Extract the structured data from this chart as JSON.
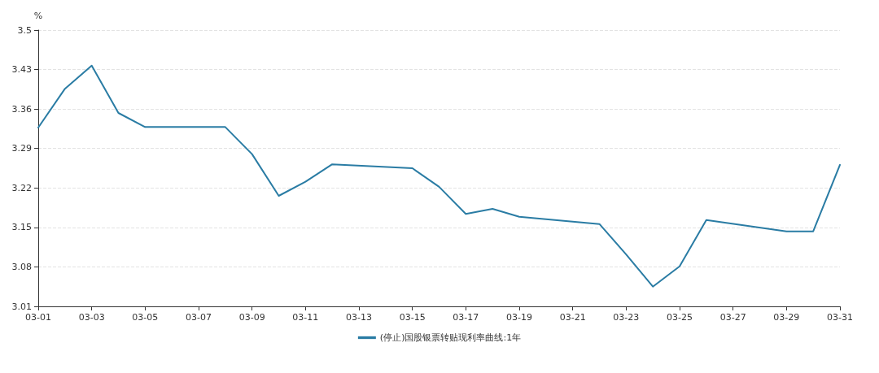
{
  "chart_data": {
    "type": "line",
    "ylabel": "%",
    "x": [
      "--03-01",
      "--03-02",
      "--03-03",
      "--03-04",
      "--03-05",
      "--03-08",
      "--03-09",
      "--03-10",
      "--03-11",
      "--03-12",
      "--03-15",
      "--03-16",
      "--03-17",
      "--03-18",
      "--03-19",
      "--03-22",
      "--03-23",
      "--03-24",
      "--03-25",
      "--03-26",
      "--03-29",
      "--03-30",
      "--03-31"
    ],
    "series": [
      {
        "name": "(停止)国股银票转贴现利率曲线:1年",
        "color": "#2a7ca4",
        "values": [
          3.327,
          3.396,
          3.437,
          3.353,
          3.328,
          3.328,
          3.28,
          3.206,
          3.231,
          3.262,
          3.255,
          3.222,
          3.174,
          3.183,
          3.169,
          3.156,
          3.102,
          3.045,
          3.081,
          3.163,
          3.143,
          3.143,
          3.261
        ]
      }
    ],
    "xlim": [
      "--03-01",
      "--03-31"
    ],
    "xticks": [
      {
        "value": "--03-01",
        "label": "03-01"
      },
      {
        "value": "--03-03",
        "label": "03-03"
      },
      {
        "value": "--03-05",
        "label": "03-05"
      },
      {
        "value": "--03-07",
        "label": "03-07"
      },
      {
        "value": "--03-09",
        "label": "03-09"
      },
      {
        "value": "--03-11",
        "label": "03-11"
      },
      {
        "value": "--03-13",
        "label": "03-13"
      },
      {
        "value": "--03-15",
        "label": "03-15"
      },
      {
        "value": "--03-17",
        "label": "03-17"
      },
      {
        "value": "--03-19",
        "label": "03-19"
      },
      {
        "value": "--03-21",
        "label": "03-21"
      },
      {
        "value": "--03-23",
        "label": "03-23"
      },
      {
        "value": "--03-25",
        "label": "03-25"
      },
      {
        "value": "--03-27",
        "label": "03-27"
      },
      {
        "value": "--03-29",
        "label": "03-29"
      },
      {
        "value": "--03-31",
        "label": "03-31"
      }
    ],
    "ylim": [
      3.01,
      3.5
    ],
    "yticks": [
      3.01,
      3.08,
      3.15,
      3.22,
      3.29,
      3.36,
      3.43,
      3.5
    ],
    "grid": "y",
    "legend": "bottom",
    "marker": "none",
    "line_style": "solid"
  }
}
